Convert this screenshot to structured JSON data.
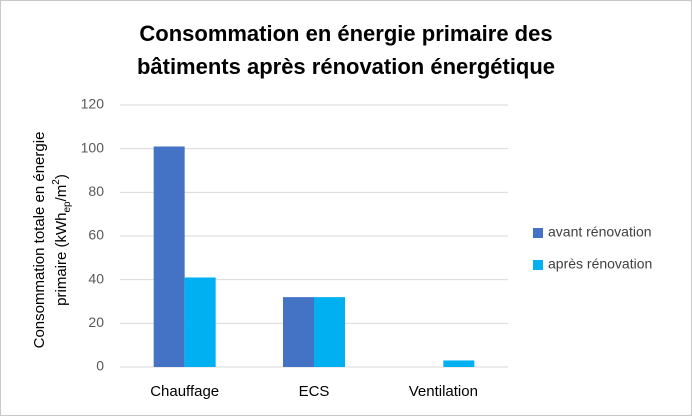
{
  "chart_data": {
    "type": "bar",
    "title": [
      "Consommation en énergie primaire des",
      "bâtiments après rénovation énergétique"
    ],
    "y_label": [
      "Consommation totale en énergie",
      "primaire (kWh",
      "ep",
      "/m",
      "2",
      ")"
    ],
    "categories": [
      "Chauffage",
      "ECS",
      "Ventilation"
    ],
    "series": [
      {
        "name": "avant rénovation",
        "color": "#4472c4",
        "values": [
          101,
          32,
          0
        ]
      },
      {
        "name": "après rénovation",
        "color": "#00b0f0",
        "values": [
          41,
          32,
          3
        ]
      }
    ],
    "ylim": [
      0,
      120
    ],
    "yticks": [
      0,
      20,
      40,
      60,
      80,
      100,
      120
    ],
    "grid": true,
    "legend": "right"
  }
}
